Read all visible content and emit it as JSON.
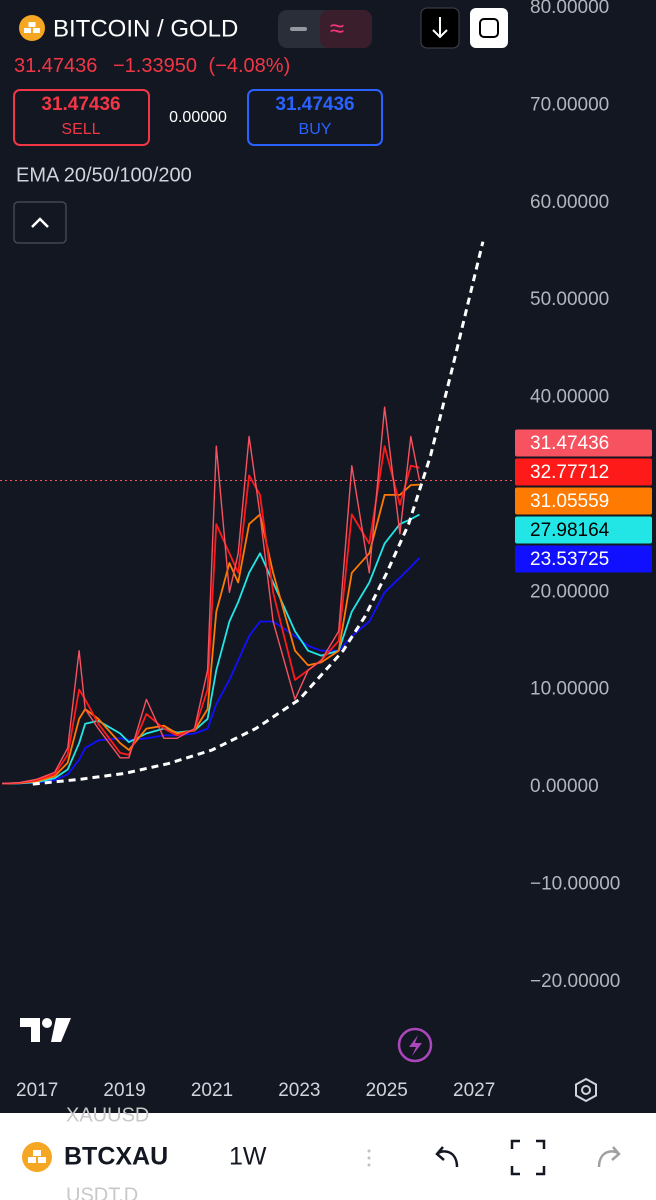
{
  "header": {
    "symbol_name": "BITCOIN / GOLD",
    "change": "−1.33950",
    "change_pct": "(−4.08%)",
    "sell_label": "SELL",
    "spread": "0.00000",
    "buy_label": "BUY",
    "indicator": "EMA 20/50/100/200"
  },
  "chart_data": {
    "type": "line",
    "x": [
      2016.2,
      2016.6,
      2017.0,
      2017.4,
      2017.7,
      2017.96,
      2018.1,
      2018.4,
      2018.9,
      2019.1,
      2019.5,
      2019.9,
      2020.2,
      2020.6,
      2020.9,
      2021.1,
      2021.4,
      2021.6,
      2021.85,
      2022.1,
      2022.4,
      2022.9,
      2023.2,
      2023.5,
      2023.9,
      2024.2,
      2024.6,
      2024.95,
      2025.3,
      2025.55,
      2025.75
    ],
    "series": [
      {
        "color": "#f7525f",
        "values": [
          0.35,
          0.45,
          0.8,
          1.5,
          4,
          14,
          8,
          6,
          3,
          3,
          9,
          5,
          5,
          6,
          12,
          35,
          20,
          24,
          36,
          28,
          17,
          9,
          12,
          13,
          16,
          33,
          22,
          39,
          26,
          36,
          31.47436
        ]
      },
      {
        "color": "#ff1a1a",
        "values": [
          0.35,
          0.42,
          0.7,
          1.3,
          3.3,
          10,
          9,
          6.5,
          3.5,
          3.3,
          7.5,
          6,
          5.3,
          5.9,
          10,
          27,
          24,
          22,
          32,
          30,
          20,
          11,
          12,
          13,
          15,
          28,
          25,
          35,
          29,
          33,
          32.77712
        ]
      },
      {
        "color": "#ff7a00",
        "values": [
          0.35,
          0.4,
          0.6,
          1.1,
          2.5,
          7,
          8,
          7,
          4.5,
          3.8,
          6,
          6.3,
          5.5,
          5.8,
          8,
          18,
          23,
          21,
          27,
          28,
          22,
          14,
          12.5,
          12.8,
          14,
          22,
          24,
          30,
          30,
          31,
          31.05559
        ]
      },
      {
        "color": "#22e6e6",
        "values": [
          0.35,
          0.38,
          0.5,
          0.9,
          1.8,
          4.5,
          6.5,
          6.8,
          5.5,
          4.6,
          5.5,
          6,
          5.6,
          5.8,
          7,
          12,
          17,
          19,
          22,
          24,
          21,
          16,
          14,
          13.5,
          14,
          18,
          21,
          25,
          27,
          27.5,
          27.98164
        ]
      },
      {
        "color": "#1010ff",
        "values": [
          0.35,
          0.37,
          0.45,
          0.7,
          1.3,
          2.8,
          4,
          4.8,
          5,
          4.8,
          5,
          5.3,
          5.3,
          5.5,
          6,
          8.5,
          11,
          13,
          15.5,
          17,
          17,
          15.5,
          14.5,
          14,
          14,
          15.5,
          17,
          20,
          21.5,
          22.6,
          23.53725
        ]
      }
    ],
    "trendline": {
      "color": "#ffffff",
      "x": [
        2016.9,
        2018,
        2019,
        2020,
        2021,
        2022,
        2023,
        2024,
        2024.5,
        2025,
        2025.5,
        2026,
        2026.5,
        2027.2
      ],
      "values": [
        0.3,
        0.8,
        1.4,
        2.4,
        3.8,
        6,
        9,
        14,
        17.5,
        22,
        27,
        34,
        43,
        56
      ]
    },
    "xlim": [
      2016.15,
      2027.82
    ],
    "xticks": [
      2017,
      2019,
      2021,
      2023,
      2025,
      2027
    ],
    "ylim": [
      -29.06,
      80.82
    ],
    "yticks": [
      {
        "value": 80,
        "label": "80.00000"
      },
      {
        "value": 70,
        "label": "70.00000"
      },
      {
        "value": 60,
        "label": "60.00000"
      },
      {
        "value": 50,
        "label": "50.00000"
      },
      {
        "value": 40,
        "label": "40.00000"
      },
      {
        "value": 20,
        "label": "20.00000"
      },
      {
        "value": 10,
        "label": "10.00000"
      },
      {
        "value": 0,
        "label": "0.00000"
      },
      {
        "value": -10,
        "label": "−10.00000"
      },
      {
        "value": -20,
        "label": "−20.00000"
      }
    ]
  },
  "toolbar": {
    "ghost_top": "XAUUSD",
    "symbol": "BTCXAU",
    "interval": "1W",
    "ghost_bottom": "USDT.D"
  }
}
